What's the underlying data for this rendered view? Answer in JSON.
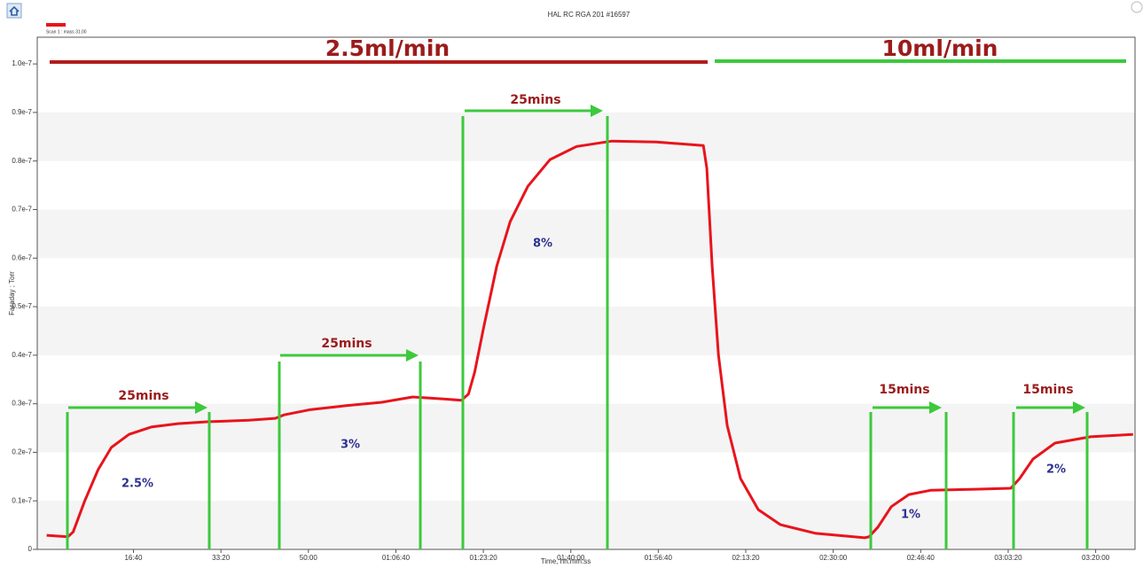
{
  "chart_data": {
    "type": "line",
    "title": "HAL RC RGA 201 #16597",
    "xlabel": "Time, hh:mm:ss",
    "ylabel": "Faraday ; Torr",
    "x": [
      7,
      250,
      311,
      443,
      595,
      747,
      949,
      1203,
      1507,
      1861,
      2317,
      2621,
      2722,
      3026,
      3432,
      3837,
      4191,
      4546,
      4749,
      4830,
      4901,
      5002,
      5154,
      5306,
      5509,
      5762,
      6066,
      6471,
      6978,
      7515,
      7555,
      7616,
      7687,
      7788,
      7940,
      8143,
      8396,
      8801,
      9359,
      9409,
      9511,
      9663,
      9865,
      10119,
      10625,
      11030,
      11131,
      11283,
      11536,
      11942,
      12428
    ],
    "series": [
      {
        "name": "Scan 1 : mass 31.00",
        "color": "#e8141c",
        "values": [
          2.9e-09,
          2.6e-09,
          3.6e-09,
          1e-08,
          1.64e-08,
          2.1e-08,
          2.37e-08,
          2.52e-08,
          2.59e-08,
          2.63e-08,
          2.66e-08,
          2.7e-08,
          2.77e-08,
          2.88e-08,
          2.96e-08,
          3.03e-08,
          3.14e-08,
          3.1e-08,
          3.07e-08,
          3.2e-08,
          3.65e-08,
          4.56e-08,
          5.84e-08,
          6.75e-08,
          7.48e-08,
          8.03e-08,
          8.3e-08,
          8.41e-08,
          8.39e-08,
          8.32e-08,
          7.85e-08,
          5.84e-08,
          4.01e-08,
          2.55e-08,
          1.46e-08,
          8.2e-09,
          5.1e-09,
          3.3e-09,
          2.4e-09,
          2.6e-09,
          4.6e-09,
          8.8e-09,
          1.13e-08,
          1.22e-08,
          1.24e-08,
          1.26e-08,
          1.46e-08,
          1.86e-08,
          2.19e-08,
          2.32e-08,
          2.37e-08
        ]
      }
    ],
    "xlim": [
      -100,
      12450
    ],
    "xticks": [
      {
        "value": 1000,
        "label": "16:40"
      },
      {
        "value": 2000,
        "label": "33:20"
      },
      {
        "value": 3000,
        "label": "50:00"
      },
      {
        "value": 4000,
        "label": "01:06:40"
      },
      {
        "value": 5000,
        "label": "01:23:20"
      },
      {
        "value": 6000,
        "label": "01:40:00"
      },
      {
        "value": 7000,
        "label": "01:56:40"
      },
      {
        "value": 8000,
        "label": "02:13:20"
      },
      {
        "value": 9000,
        "label": "02:30:00"
      },
      {
        "value": 10000,
        "label": "02:46:40"
      },
      {
        "value": 11000,
        "label": "03:03:20"
      },
      {
        "value": 12000,
        "label": "03:20:00"
      }
    ],
    "ylim": [
      0,
      1.055e-07
    ],
    "yticks": [
      0,
      {
        "value": 1e-08,
        "label": "0.1e-7"
      },
      {
        "value": 2e-08,
        "label": "0.2e-7"
      },
      {
        "value": 3e-08,
        "label": "0.3e-7"
      },
      {
        "value": 4e-08,
        "label": "0.4e-7"
      },
      {
        "value": 5e-08,
        "label": "0.5e-7"
      },
      {
        "value": 6e-08,
        "label": "0.6e-7"
      },
      {
        "value": 7e-08,
        "label": "0.7e-7"
      },
      {
        "value": 8e-08,
        "label": "0.8e-7"
      },
      {
        "value": 9e-08,
        "label": "0.9e-7"
      },
      {
        "value": 1e-07,
        "label": "1.0e-7"
      }
    ],
    "grid": "bands",
    "annotations": [
      "2.5ml/min",
      "10ml/min",
      "25mins",
      "25mins",
      "25mins",
      "15mins",
      "15mins",
      "2.5%",
      "3%",
      "8%",
      "1%",
      "2%"
    ]
  }
}
